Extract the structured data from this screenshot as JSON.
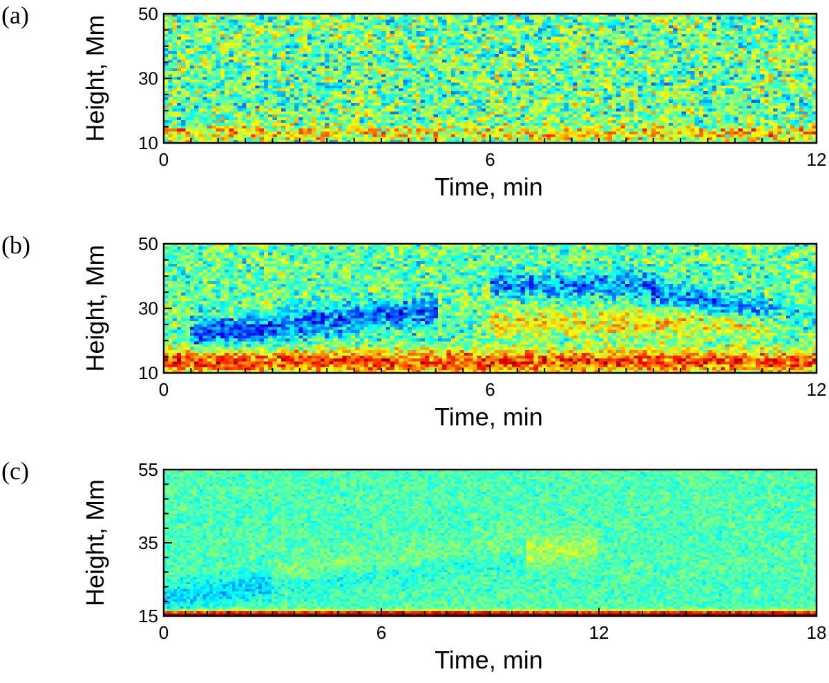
{
  "chart_data": [
    {
      "type": "heatmap",
      "panel_label": "(a)",
      "xlabel": "Time, min",
      "ylabel": "Height, Mm",
      "xlim": [
        0,
        12
      ],
      "ylim": [
        10,
        50
      ],
      "x_ticks": [
        "0",
        "6",
        "12"
      ],
      "y_ticks": [
        "10",
        "30",
        "50"
      ],
      "x_ticks_values": [
        0,
        6,
        12
      ],
      "y_ticks_values": [
        10,
        30,
        50
      ],
      "x_minor_step": 0.5,
      "y_minor_step": 5,
      "colormap": "jet",
      "description_pattern": "noisy, weak red band near 13 Mm",
      "bands": [
        {
          "h_center": 13,
          "h_width": 1.5,
          "strength": 0.18,
          "t_start": 0,
          "t_end": 12,
          "slope": 0
        }
      ],
      "noise": 0.36,
      "base": 0.48
    },
    {
      "type": "heatmap",
      "panel_label": "(b)",
      "xlabel": "Time, min",
      "ylabel": "Height, Mm",
      "xlim": [
        0,
        12
      ],
      "ylim": [
        10,
        50
      ],
      "x_ticks": [
        "0",
        "6",
        "12"
      ],
      "y_ticks": [
        "10",
        "30",
        "50"
      ],
      "x_ticks_values": [
        0,
        6,
        12
      ],
      "y_ticks_values": [
        10,
        30,
        50
      ],
      "x_minor_step": 0.5,
      "y_minor_step": 5,
      "colormap": "jet",
      "description_pattern": "strong red band near 13 Mm, blue trough rising to about 37 Mm",
      "bands": [
        {
          "h_center": 13.5,
          "h_width": 2.5,
          "strength": 0.34,
          "t_start": 0,
          "t_end": 12,
          "slope": 0
        },
        {
          "h_center": 22,
          "h_width": 3,
          "strength": -0.26,
          "t_start": 0.5,
          "t_end": 5,
          "slope": 1.6
        },
        {
          "h_center": 37,
          "h_width": 2.5,
          "strength": -0.22,
          "t_start": 6,
          "t_end": 9,
          "slope": 0
        },
        {
          "h_center": 35,
          "h_width": 3,
          "strength": -0.22,
          "t_start": 9,
          "t_end": 12,
          "slope": -3
        },
        {
          "h_center": 25,
          "h_width": 3,
          "strength": 0.16,
          "t_start": 6,
          "t_end": 12,
          "slope": 0.2
        }
      ],
      "noise": 0.28,
      "base": 0.47
    },
    {
      "type": "heatmap",
      "panel_label": "(c)",
      "xlabel": "Time, min",
      "ylabel": "Height, Mm",
      "xlim": [
        0,
        18
      ],
      "ylim": [
        15,
        55
      ],
      "x_ticks": [
        "0",
        "6",
        "12",
        "18"
      ],
      "y_ticks": [
        "15",
        "35",
        "55"
      ],
      "x_ticks_values": [
        0,
        6,
        12,
        18
      ],
      "y_ticks_values": [
        15,
        35,
        55
      ],
      "x_minor_step": 0.6,
      "y_minor_step": 4,
      "colormap": "jet",
      "description_pattern": "smooth, thin red layer at base, faint rising blue/yellow streaks",
      "bands": [
        {
          "h_center": 15.4,
          "h_width": 0.7,
          "strength": 0.55,
          "t_start": 0,
          "t_end": 18,
          "slope": 0
        },
        {
          "h_center": 20,
          "h_width": 2.5,
          "strength": -0.12,
          "t_start": 0,
          "t_end": 10,
          "slope": 1.1
        },
        {
          "h_center": 25,
          "h_width": 3,
          "strength": 0.1,
          "t_start": 3,
          "t_end": 12,
          "slope": 1.0
        }
      ],
      "noise": 0.14,
      "base": 0.45
    }
  ]
}
